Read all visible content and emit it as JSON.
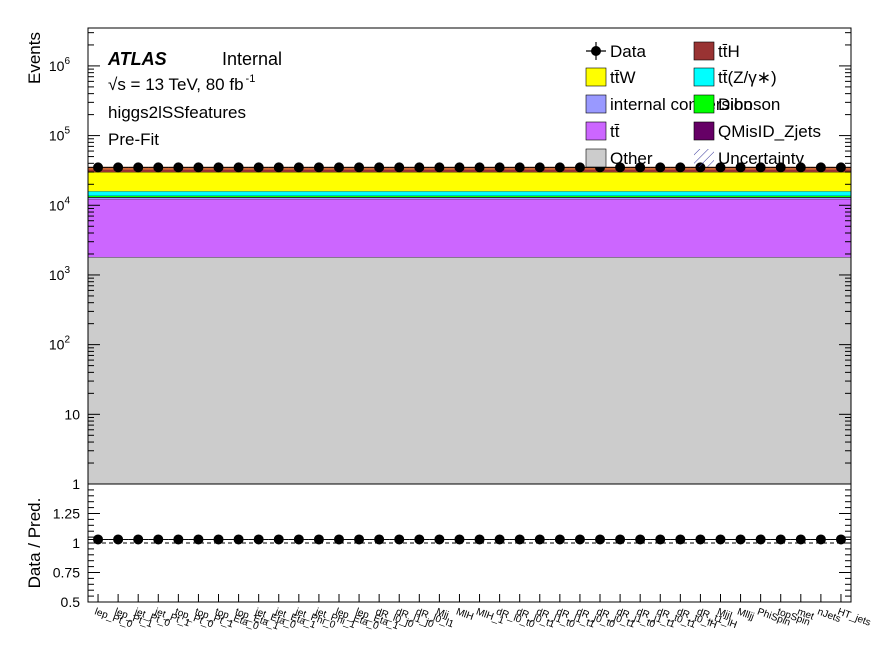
{
  "chart_data": [
    {
      "type": "stacked-bar",
      "ylabel": "Events",
      "yscale": "log",
      "ylim": [
        1,
        3500000
      ],
      "atlas": {
        "label": "ATLAS",
        "status": "Internal"
      },
      "energy_text": "√s = 13 TeV, 80 fb",
      "lumi_exp": "-1",
      "region": "higgs2lSSfeatures",
      "fit_stage": "Pre-Fit",
      "y_ticks": [
        {
          "value": 1,
          "label": "1"
        },
        {
          "value": 10,
          "label": "10"
        },
        {
          "value": 100,
          "label": "10",
          "exp": "2"
        },
        {
          "value": 1000,
          "label": "10",
          "exp": "3"
        },
        {
          "value": 10000,
          "label": "10",
          "exp": "4"
        },
        {
          "value": 100000,
          "label": "10",
          "exp": "5"
        },
        {
          "value": 1000000,
          "label": "10",
          "exp": "6"
        }
      ],
      "categories": [
        "lep_Pt_0",
        "lep_Pt_1",
        "jet_Pt_0",
        "jet_Pt_1",
        "top_Pt_0",
        "top_Pt_1",
        "top_Eta_0",
        "top_Eta_1",
        "jet_Eta_0",
        "jet_Eta_1",
        "jet_Phi_0",
        "jet_Phi_1",
        "lep_Eta_0",
        "lep_Eta_1",
        "dR_l0_j0",
        "dR_l1_j0",
        "dR_l0_l1",
        "Mjj",
        "MlH",
        "MlH_1",
        "dR_l0_t0",
        "dR_l0_t1",
        "dR_l1_t0",
        "dR_l1_t1",
        "dR_j0_t0",
        "dR_j0_t1",
        "dR_j1_t0",
        "dR_j1_t1",
        "dR_t0_t1",
        "dR_t0_lH",
        "dR_t1_lH",
        "Mjjl",
        "Mlljj",
        "PhiSpin",
        "topSpin",
        "met",
        "nJets",
        "HT_jets"
      ],
      "stack": [
        {
          "name": "Other",
          "value": 1800,
          "color": "#cccccc"
        },
        {
          "name": "tt̄",
          "value": 10500,
          "color": "#cc66ff"
        },
        {
          "name": "internal conversion",
          "value": 600,
          "color": "#9999ff"
        },
        {
          "name": "QMisID_Zjets",
          "value": 200,
          "color": "#660066"
        },
        {
          "name": "Diboson",
          "value": 600,
          "color": "#00ff00"
        },
        {
          "name": "tt̄(Z/γ∗)",
          "value": 2200,
          "color": "#00ffff"
        },
        {
          "name": "tt̄W",
          "value": 14000,
          "color": "#ffff00"
        },
        {
          "name": "tt̄H",
          "value": 3500,
          "color": "#993333"
        }
      ],
      "stack_top_color": "#cc6633",
      "data_value": 35000,
      "legend": [
        {
          "label": "Data",
          "type": "marker"
        },
        {
          "label": "tt̄H",
          "type": "box",
          "color": "#993333"
        },
        {
          "label": "tt̄W",
          "type": "box",
          "color": "#ffff00"
        },
        {
          "label": "tt̄(Z/γ∗)",
          "type": "box",
          "color": "#00ffff"
        },
        {
          "label": "internal conversion",
          "type": "box",
          "color": "#9999ff"
        },
        {
          "label": "Diboson",
          "type": "box",
          "color": "#00ff00"
        },
        {
          "label": "tt̄",
          "type": "box",
          "color": "#cc66ff"
        },
        {
          "label": "QMisID_Zjets",
          "type": "box",
          "color": "#660066"
        },
        {
          "label": "Other",
          "type": "box",
          "color": "#cccccc"
        },
        {
          "label": "Uncertainty",
          "type": "hatch",
          "color": "#333399"
        }
      ]
    },
    {
      "type": "scatter",
      "ylabel": "Data / Pred.",
      "ylim": [
        0.5,
        1.5
      ],
      "y_ticks": [
        {
          "value": 0.5,
          "label": "0.5"
        },
        {
          "value": 0.75,
          "label": "0.75"
        },
        {
          "value": 1,
          "label": "1"
        },
        {
          "value": 1.25,
          "label": "1.25"
        }
      ],
      "reference": 1,
      "ratio_value": 1.03
    }
  ]
}
